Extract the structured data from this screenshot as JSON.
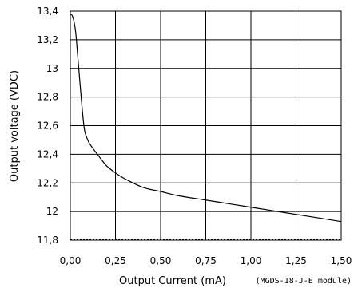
{
  "chart_data": {
    "type": "line",
    "xlabel": "Output Current (mA)",
    "ylabel": "Output voltage (VDC)",
    "annotation": "(MGDS-18-J-E module)",
    "xlim": [
      0,
      1.5
    ],
    "ylim": [
      11.8,
      13.4
    ],
    "x_ticks": [
      0,
      0.25,
      0.5,
      0.75,
      1.0,
      1.25,
      1.5
    ],
    "x_tick_labels": [
      "0,00",
      "0,25",
      "0,50",
      "0,75",
      "1,00",
      "1,25",
      "1,50"
    ],
    "y_ticks": [
      11.8,
      12.0,
      12.2,
      12.4,
      12.6,
      12.8,
      13.0,
      13.2,
      13.4
    ],
    "y_tick_labels": [
      "11,8",
      "12",
      "12,2",
      "12,4",
      "12,6",
      "12,8",
      "13",
      "13,2",
      "13,4"
    ],
    "grid": true,
    "reference_line": {
      "y": 11.8,
      "style": "dashed"
    },
    "series": [
      {
        "x": [
          0.0,
          0.01,
          0.02,
          0.03,
          0.04,
          0.05,
          0.06,
          0.07,
          0.08,
          0.1,
          0.12,
          0.15,
          0.2,
          0.25,
          0.3,
          0.4,
          0.5,
          0.6,
          0.75,
          0.9,
          1.0,
          1.1,
          1.25,
          1.4,
          1.5
        ],
        "y": [
          13.38,
          13.37,
          13.33,
          13.25,
          13.1,
          12.95,
          12.8,
          12.66,
          12.56,
          12.49,
          12.45,
          12.4,
          12.32,
          12.27,
          12.23,
          12.17,
          12.14,
          12.11,
          12.08,
          12.05,
          12.03,
          12.01,
          11.98,
          11.95,
          11.93
        ]
      }
    ]
  }
}
